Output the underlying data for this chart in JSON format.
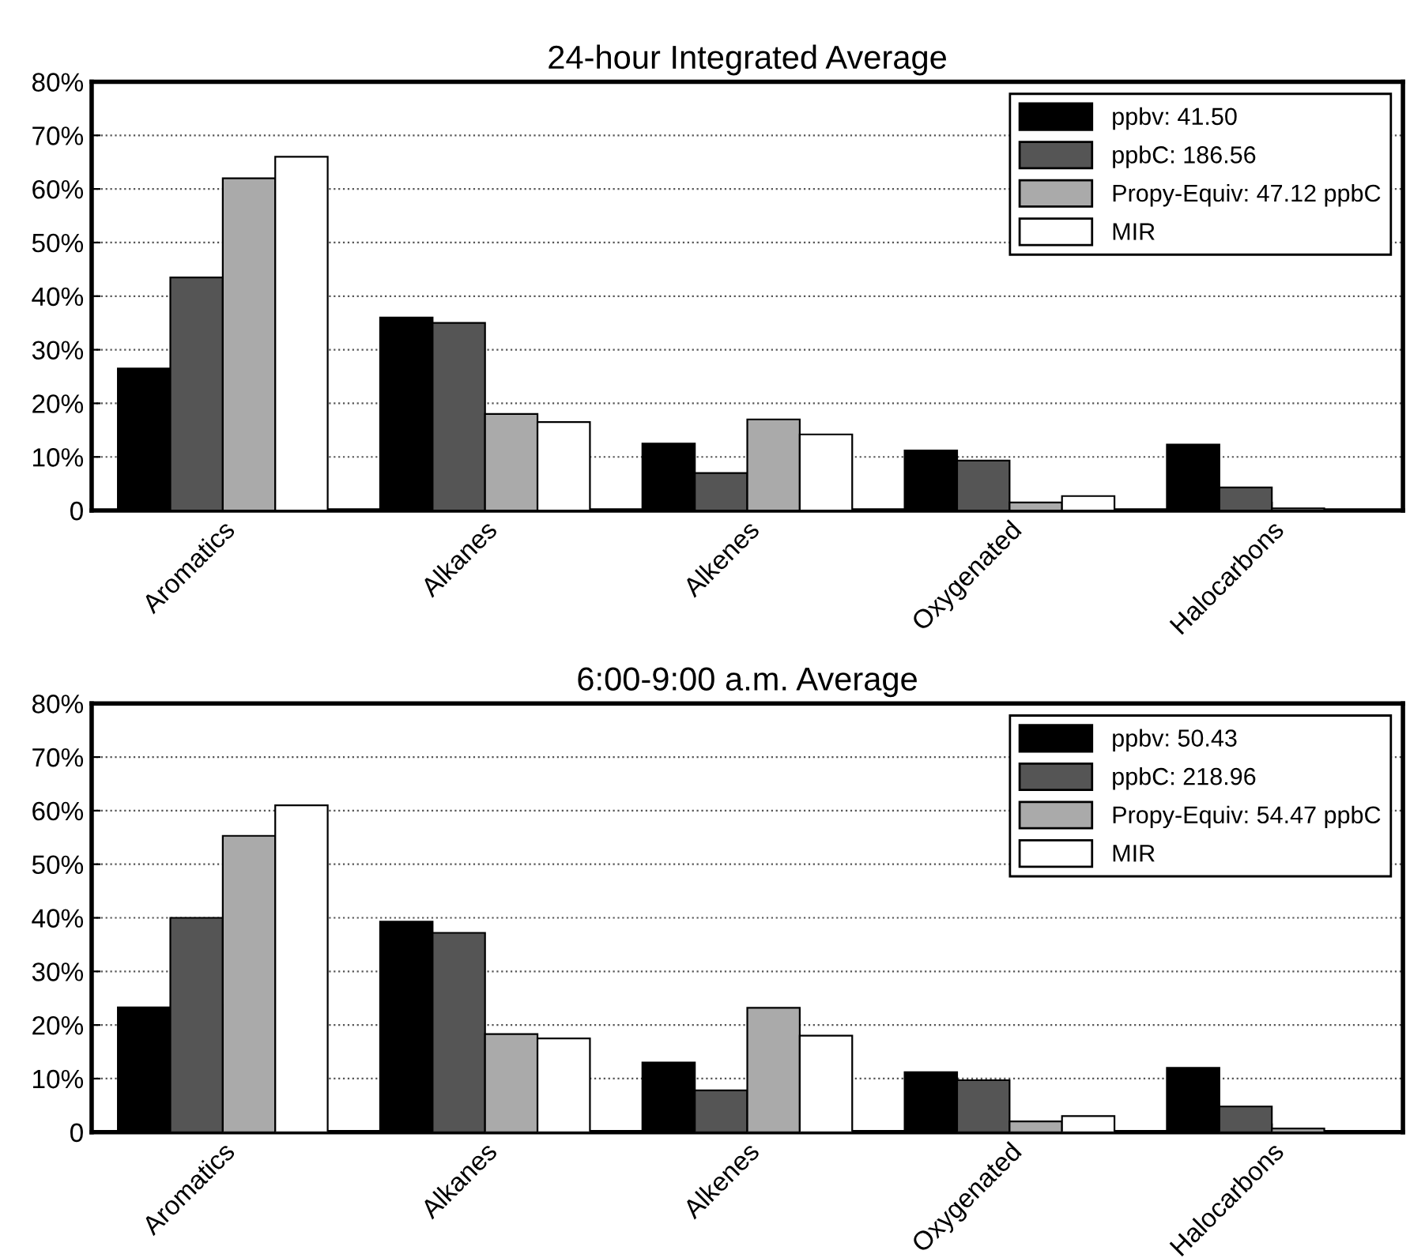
{
  "chart_data": [
    {
      "type": "bar",
      "title": "24-hour Integrated Average",
      "categories": [
        "Aromatics",
        "Alkanes",
        "Alkenes",
        "Oxygenated",
        "Halocarbons"
      ],
      "series": [
        {
          "name": "ppbv: 41.50",
          "color": "#000000",
          "values": [
            26.5,
            36,
            12.5,
            11.2,
            12.3
          ]
        },
        {
          "name": "ppbC: 186.56",
          "color": "#555555",
          "values": [
            43.5,
            35,
            7,
            9.3,
            4.3
          ]
        },
        {
          "name": "Propy-Equiv: 47.12 ppbC",
          "color": "#aaaaaa",
          "values": [
            62,
            18,
            17,
            1.5,
            0.4
          ]
        },
        {
          "name": "MIR",
          "color": "#ffffff",
          "values": [
            66,
            16.5,
            14.2,
            2.7,
            null
          ]
        }
      ],
      "ylim": [
        0,
        80
      ],
      "yticks": [
        {
          "value": 0,
          "label": "0"
        },
        {
          "value": 10,
          "label": "10%"
        },
        {
          "value": 20,
          "label": "20%"
        },
        {
          "value": 30,
          "label": "30%"
        },
        {
          "value": 40,
          "label": "40%"
        },
        {
          "value": 50,
          "label": "50%"
        },
        {
          "value": 60,
          "label": "60%"
        },
        {
          "value": 70,
          "label": "70%"
        },
        {
          "value": 80,
          "label": "80%"
        }
      ],
      "grid": "y",
      "legend": "top right"
    },
    {
      "type": "bar",
      "title": "6:00-9:00 a.m. Average",
      "categories": [
        "Aromatics",
        "Alkanes",
        "Alkenes",
        "Oxygenated",
        "Halocarbons"
      ],
      "series": [
        {
          "name": "ppbv: 50.43",
          "color": "#000000",
          "values": [
            23.3,
            39.3,
            13,
            11.2,
            12
          ]
        },
        {
          "name": "ppbC: 218.96",
          "color": "#555555",
          "values": [
            40,
            37.2,
            7.8,
            9.7,
            4.8
          ]
        },
        {
          "name": "Propy-Equiv: 54.47 ppbC",
          "color": "#aaaaaa",
          "values": [
            55.3,
            18.3,
            23.2,
            2,
            0.7
          ]
        },
        {
          "name": "MIR",
          "color": "#ffffff",
          "values": [
            61,
            17.5,
            18,
            3,
            null
          ]
        }
      ],
      "ylim": [
        0,
        80
      ],
      "yticks": [
        {
          "value": 0,
          "label": "0"
        },
        {
          "value": 10,
          "label": "10%"
        },
        {
          "value": 20,
          "label": "20%"
        },
        {
          "value": 30,
          "label": "30%"
        },
        {
          "value": 40,
          "label": "40%"
        },
        {
          "value": 50,
          "label": "50%"
        },
        {
          "value": 60,
          "label": "60%"
        },
        {
          "value": 70,
          "label": "70%"
        },
        {
          "value": 80,
          "label": "80%"
        }
      ],
      "grid": "y",
      "legend": "top right"
    }
  ]
}
